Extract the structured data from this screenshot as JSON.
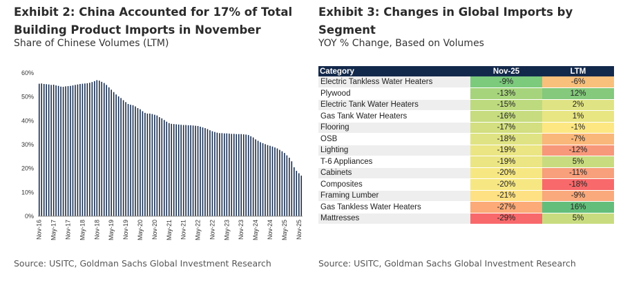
{
  "left": {
    "title": "Exhibit 2: China Accounted for 17% of Total Building Product Imports in November",
    "subtitle": "Share of Chinese Volumes (LTM)",
    "source": "Source: USITC, Goldman Sachs Global Investment Research"
  },
  "right": {
    "title": "Exhibit 3: Changes in Global Imports by Segment",
    "subtitle": "YOY % Change, Based on Volumes",
    "source": "Source: USITC, Goldman Sachs Global Investment Research"
  },
  "table": {
    "headers": [
      "Category",
      "Nov-25",
      "LTM"
    ],
    "rows": [
      {
        "category": "Electric Tankless Water Heaters",
        "nov25": "-9%",
        "ltm": "-6%",
        "nov25_color": "#7ccb7d",
        "ltm_color": "#f9c07c"
      },
      {
        "category": "Plywood",
        "nov25": "-13%",
        "ltm": "12%",
        "nov25_color": "#a6d47d",
        "ltm_color": "#84c97c"
      },
      {
        "category": "Electric Tank Water Heaters",
        "nov25": "-15%",
        "ltm": "2%",
        "nov25_color": "#bdda7e",
        "ltm_color": "#e0e383"
      },
      {
        "category": "Gas Tank Water Heaters",
        "nov25": "-16%",
        "ltm": "1%",
        "nov25_color": "#c6dc7f",
        "ltm_color": "#e8e583"
      },
      {
        "category": "Flooring",
        "nov25": "-17%",
        "ltm": "-1%",
        "nov25_color": "#d3df80",
        "ltm_color": "#fce783"
      },
      {
        "category": "OSB",
        "nov25": "-18%",
        "ltm": "-7%",
        "nov25_color": "#e0e383",
        "ltm_color": "#f9b77a"
      },
      {
        "category": "Lighting",
        "nov25": "-19%",
        "ltm": "-12%",
        "nov25_color": "#ebe583",
        "ltm_color": "#f7987a"
      },
      {
        "category": "T-6 Appliances",
        "nov25": "-19%",
        "ltm": "5%",
        "nov25_color": "#ebe583",
        "ltm_color": "#c8dc7f"
      },
      {
        "category": "Cabinets",
        "nov25": "-20%",
        "ltm": "-11%",
        "nov25_color": "#f6e783",
        "ltm_color": "#f89f7b"
      },
      {
        "category": "Composites",
        "nov25": "-20%",
        "ltm": "-18%",
        "nov25_color": "#f6e783",
        "ltm_color": "#f8696b"
      },
      {
        "category": "Framing Lumber",
        "nov25": "-21%",
        "ltm": "-9%",
        "nov25_color": "#fee182",
        "ltm_color": "#f9a97b"
      },
      {
        "category": "Gas Tankless Water Heaters",
        "nov25": "-27%",
        "ltm": "16%",
        "nov25_color": "#fbaa78",
        "ltm_color": "#63be7b"
      },
      {
        "category": "Mattresses",
        "nov25": "-29%",
        "ltm": "5%",
        "nov25_color": "#f8696b",
        "ltm_color": "#c8dc7f"
      }
    ]
  },
  "chart_data": {
    "type": "bar",
    "title": "Exhibit 2: China Accounted for 17% of Total Building Product Imports in November",
    "subtitle": "Share of Chinese Volumes (LTM)",
    "ylabel": "",
    "xlabel": "",
    "ylim": [
      0,
      60
    ],
    "yticks": [
      "0%",
      "10%",
      "20%",
      "30%",
      "40%",
      "50%",
      "60%"
    ],
    "ytick_values": [
      0,
      10,
      20,
      30,
      40,
      50,
      60
    ],
    "xtick_labels": [
      "Nov-16",
      "May-17",
      "Nov-17",
      "May-18",
      "Nov-18",
      "May-19",
      "Nov-19",
      "May-20",
      "Nov-20",
      "May-21",
      "Nov-21",
      "May-22",
      "Nov-22",
      "May-23",
      "Nov-23",
      "May-24",
      "Nov-24",
      "May-25",
      "Nov-25"
    ],
    "bar_color": "#13294b",
    "values": [
      55.5,
      55.6,
      55.4,
      55.3,
      55.2,
      55.0,
      55.1,
      54.8,
      54.6,
      54.3,
      54.2,
      54.4,
      54.5,
      54.6,
      54.8,
      55.0,
      55.2,
      55.4,
      55.5,
      55.6,
      55.7,
      55.9,
      56.2,
      56.6,
      57.0,
      56.8,
      56.3,
      55.8,
      55.0,
      54.0,
      53.0,
      52.0,
      51.0,
      50.2,
      49.5,
      48.6,
      47.8,
      47.0,
      46.7,
      46.5,
      46.0,
      45.3,
      44.8,
      44.0,
      43.3,
      43.0,
      43.0,
      42.8,
      42.5,
      42.2,
      41.5,
      41.0,
      40.3,
      39.6,
      39.0,
      38.7,
      38.6,
      38.5,
      38.4,
      38.3,
      38.2,
      38.2,
      38.1,
      38.1,
      38.0,
      37.9,
      37.8,
      37.5,
      37.2,
      36.9,
      36.5,
      36.0,
      35.6,
      35.3,
      35.0,
      34.8,
      34.8,
      34.7,
      34.7,
      34.6,
      34.5,
      34.5,
      34.4,
      34.4,
      34.4,
      34.3,
      34.2,
      34.0,
      33.5,
      33.0,
      32.2,
      31.6,
      31.0,
      30.6,
      30.2,
      29.8,
      29.5,
      29.2,
      28.8,
      28.4,
      27.8,
      27.2,
      26.5,
      25.5,
      24.5,
      23.0,
      20.5,
      19.0,
      18.0,
      17.0
    ]
  }
}
